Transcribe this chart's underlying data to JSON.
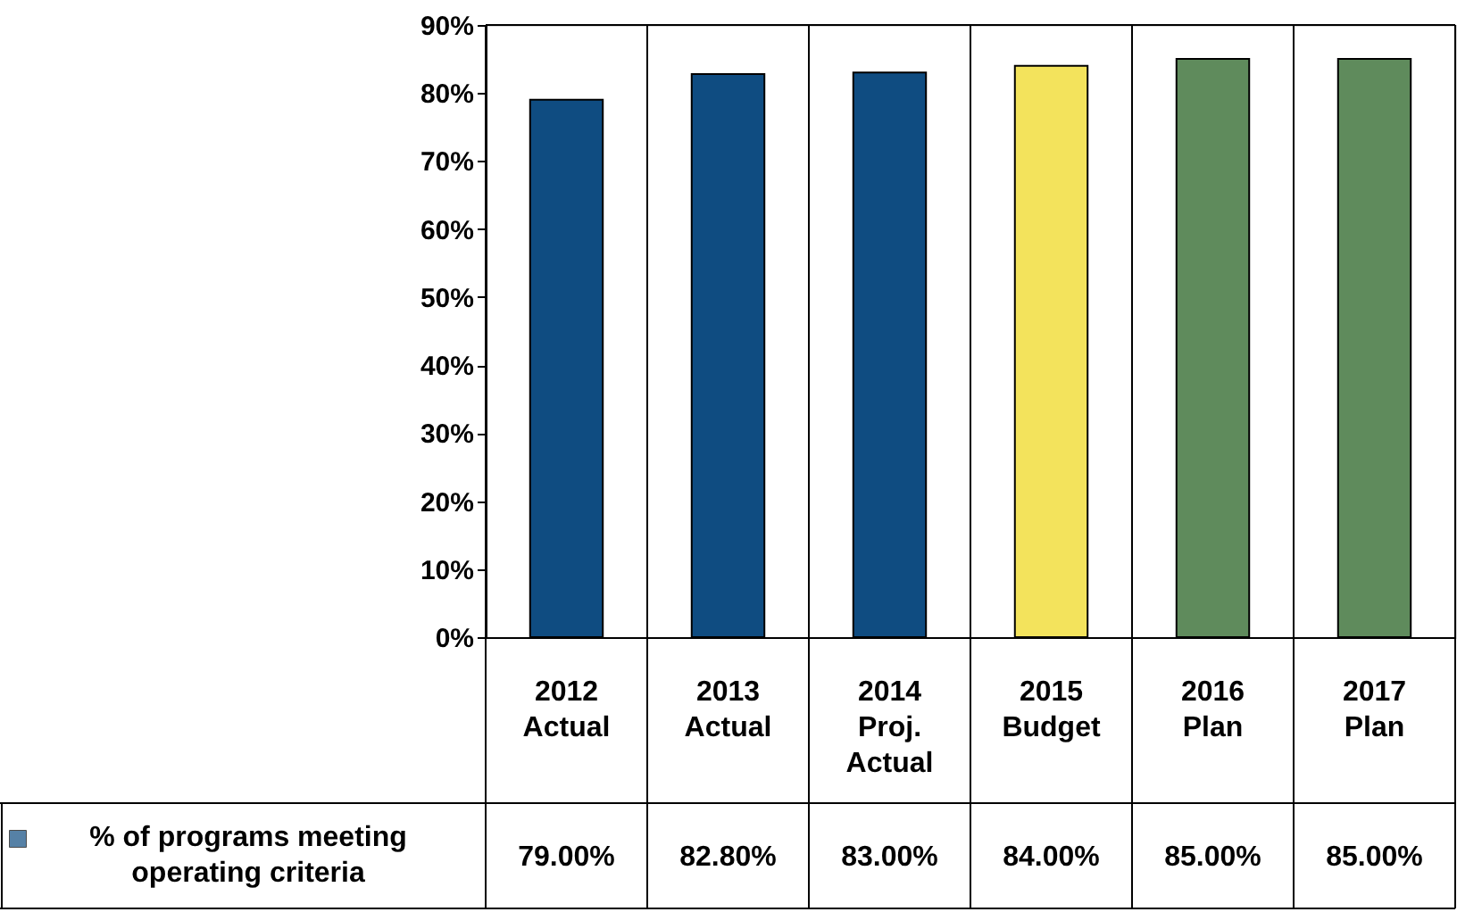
{
  "chart_data": {
    "type": "bar",
    "categories": [
      "2012 Actual",
      "2013 Actual",
      "2014 Proj. Actual",
      "2015 Budget",
      "2016 Plan",
      "2017 Plan"
    ],
    "series": [
      {
        "name": "% of programs meeting operating criteria",
        "color": "#0f4c81",
        "colors": [
          "#0f4c81",
          "#0f4c81",
          "#0f4c81",
          "#f3e35c",
          "#5f8b5c",
          "#5f8b5c"
        ],
        "values": [
          79.0,
          82.8,
          83.0,
          84.0,
          85.0,
          85.0
        ],
        "value_labels": [
          "79.00%",
          "82.80%",
          "83.00%",
          "84.00%",
          "85.00%",
          "85.00%"
        ]
      }
    ],
    "ylim": [
      0,
      90
    ],
    "yticks": [
      {
        "value": 0,
        "label": "0%"
      },
      {
        "value": 10,
        "label": "10%"
      },
      {
        "value": 20,
        "label": "20%"
      },
      {
        "value": 30,
        "label": "30%"
      },
      {
        "value": 40,
        "label": "40%"
      },
      {
        "value": 50,
        "label": "50%"
      },
      {
        "value": 60,
        "label": "60%"
      },
      {
        "value": 70,
        "label": "70%"
      },
      {
        "value": 80,
        "label": "80%"
      },
      {
        "value": 90,
        "label": "90%"
      }
    ],
    "grid": false,
    "legend": "bottom left"
  }
}
